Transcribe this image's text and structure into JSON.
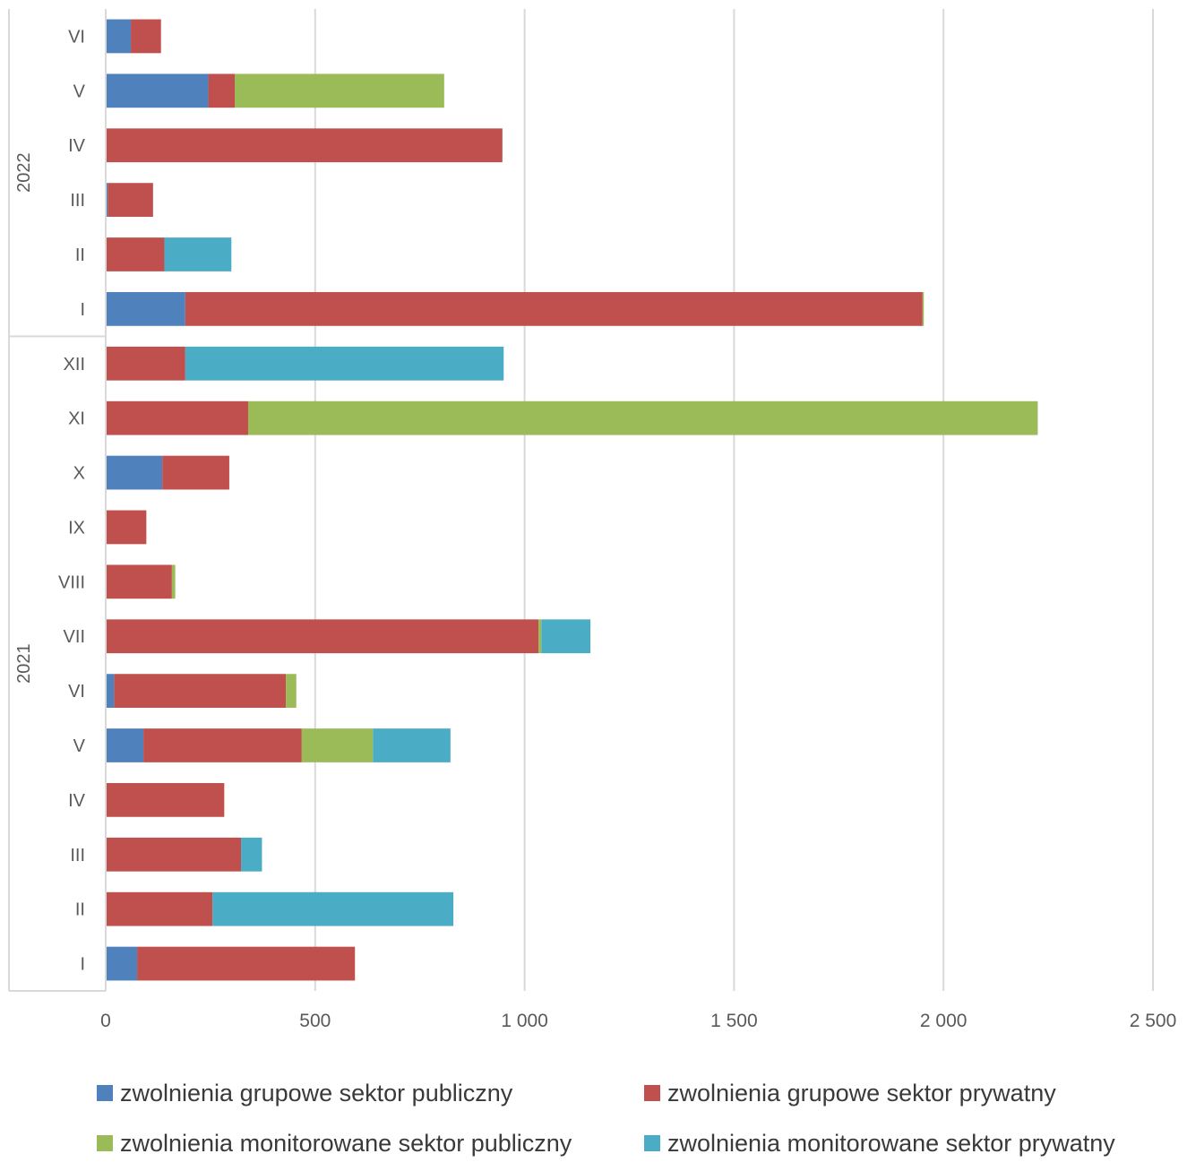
{
  "chart_data": {
    "type": "bar",
    "orientation": "horizontal",
    "stacked": true,
    "title": "",
    "xlabel": "",
    "ylabel": "",
    "xlim": [
      0,
      2500
    ],
    "x_ticks": [
      0,
      500,
      1000,
      1500,
      2000,
      2500
    ],
    "x_tick_labels": [
      "0",
      "500",
      "1 000",
      "1 500",
      "2 000",
      "2 500"
    ],
    "grid": "vertical",
    "legend_position": "bottom",
    "groups": [
      {
        "label": "2021",
        "months": [
          "I",
          "II",
          "III",
          "IV",
          "V",
          "VI",
          "VII",
          "VIII",
          "IX",
          "X",
          "XI",
          "XII"
        ]
      },
      {
        "label": "2022",
        "months": [
          "I",
          "II",
          "III",
          "IV",
          "V",
          "VI"
        ]
      }
    ],
    "categories": [
      "2021 I",
      "2021 II",
      "2021 III",
      "2021 IV",
      "2021 V",
      "2021 VI",
      "2021 VII",
      "2021 VIII",
      "2021 IX",
      "2021 X",
      "2021 XI",
      "2021 XII",
      "2022 I",
      "2022 II",
      "2022 III",
      "2022 IV",
      "2022 V",
      "2022 VI"
    ],
    "series": [
      {
        "name": "zwolnienia grupowe sektor publiczny",
        "color": "#4f81bd",
        "values": [
          75,
          0,
          0,
          0,
          90,
          20,
          0,
          0,
          0,
          135,
          0,
          0,
          190,
          0,
          5,
          0,
          245,
          60
        ]
      },
      {
        "name": "zwolnienia grupowe sektor prywatny",
        "color": "#c0504d",
        "values": [
          520,
          255,
          323,
          283,
          378,
          410,
          1033,
          158,
          97,
          160,
          340,
          190,
          1760,
          140,
          108,
          947,
          63,
          72
        ]
      },
      {
        "name": "zwolnienia monitorowane sektor publiczny",
        "color": "#9bbb59",
        "values": [
          0,
          0,
          0,
          0,
          170,
          25,
          7,
          8,
          0,
          0,
          1885,
          0,
          3,
          0,
          0,
          0,
          500,
          0
        ]
      },
      {
        "name": "zwolnienia monitorowane sektor prywatny",
        "color": "#4bacc6",
        "values": [
          0,
          575,
          50,
          0,
          185,
          0,
          117,
          0,
          0,
          0,
          0,
          760,
          0,
          160,
          0,
          0,
          0,
          0
        ]
      }
    ]
  }
}
